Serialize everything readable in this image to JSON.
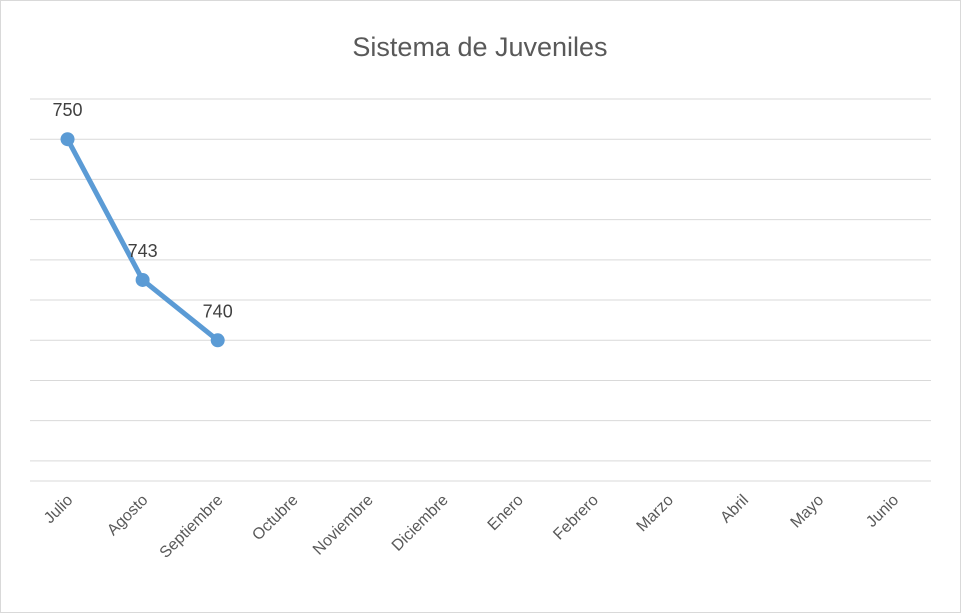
{
  "chart_data": {
    "type": "line",
    "title": "Sistema de Juveniles",
    "categories": [
      "Julio",
      "Agosto",
      "Septiembre",
      "Octubre",
      "Noviembre",
      "Diciembre",
      "Enero",
      "Febrero",
      "Marzo",
      "Abril",
      "Mayo",
      "Junio"
    ],
    "series": [
      {
        "values": [
          750,
          743,
          740,
          null,
          null,
          null,
          null,
          null,
          null,
          null,
          null,
          null
        ]
      }
    ],
    "data_labels": [
      "750",
      "743",
      "740"
    ],
    "ylim": [
      733,
      752
    ],
    "grid": true,
    "y_tick_labels_shown": false,
    "legend": "none",
    "colors": {
      "line": "#5b9bd5",
      "grid": "#d9d9d9",
      "text": "#595959"
    }
  }
}
